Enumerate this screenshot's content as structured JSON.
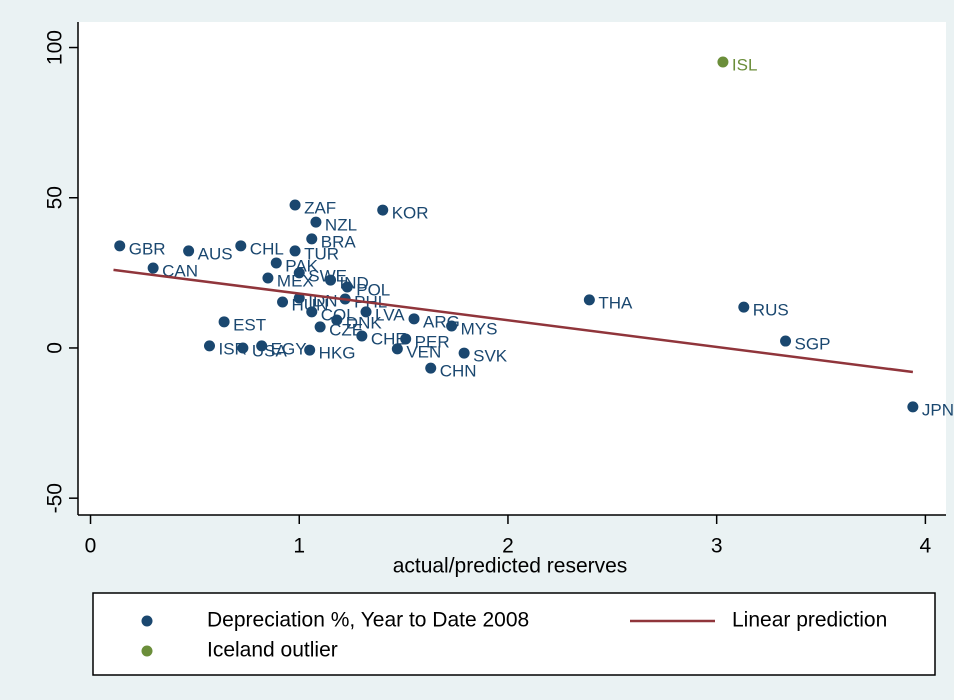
{
  "chart_data": {
    "type": "scatter",
    "x_label": "actual/predicted reserves",
    "xlim": [
      -0.06,
      4.07
    ],
    "ylim": [
      -55.6,
      108.5
    ],
    "xticks": [
      0,
      1,
      2,
      3,
      4
    ],
    "yticks": [
      -50,
      0,
      50,
      100
    ],
    "grid": false,
    "series": [
      {
        "name": "Depreciation %, Year to Date 2008",
        "type": "scatter",
        "color": "#1a476f",
        "labels": [
          "GBR",
          "CAN",
          "AUS",
          "CHL",
          "EST",
          "ISR",
          "USA",
          "EGY",
          "MEX",
          "PAK",
          "ZAF",
          "TUR",
          "SWE",
          "HUN",
          "IDN",
          "BRA",
          "NZL",
          "IND",
          "COL",
          "CZE",
          "HKG",
          "POL",
          "PHL",
          "DNK",
          "LVA",
          "ARG",
          "MYS",
          "CHE",
          "PER",
          "VEN",
          "SVK",
          "CHN",
          "THA",
          "RUS",
          "SGP",
          "JPN",
          "KOR"
        ],
        "x": [
          0.14,
          0.3,
          0.47,
          0.72,
          0.64,
          0.57,
          0.73,
          0.82,
          0.85,
          0.89,
          0.98,
          0.98,
          1.0,
          0.92,
          1.0,
          1.06,
          1.08,
          1.15,
          1.06,
          1.1,
          1.05,
          1.23,
          1.22,
          1.18,
          1.32,
          1.55,
          1.73,
          1.3,
          1.51,
          1.47,
          1.79,
          1.63,
          2.39,
          3.13,
          3.33,
          3.94,
          1.4
        ],
        "values": [
          34,
          26.6,
          32.3,
          34,
          8.7,
          0.7,
          0,
          0.7,
          23.3,
          28.3,
          47.6,
          32.3,
          25,
          15.3,
          16.6,
          36.3,
          41.9,
          22.6,
          12,
          7,
          -0.7,
          20.3,
          16.3,
          9.3,
          12,
          9.7,
          7.3,
          4,
          3,
          -0.3,
          -1.7,
          -6.7,
          16,
          13.6,
          2.3,
          -19.6,
          45.9
        ]
      },
      {
        "name": "Iceland outlier",
        "type": "scatter",
        "color": "#6b8e3a",
        "labels": [
          "ISL"
        ],
        "x": [
          3.03
        ],
        "values": [
          95.2
        ]
      },
      {
        "name": "Linear prediction",
        "type": "line",
        "color": "#90353b",
        "x": [
          0.11,
          3.94
        ],
        "values": [
          26,
          -8
        ]
      }
    ]
  }
}
